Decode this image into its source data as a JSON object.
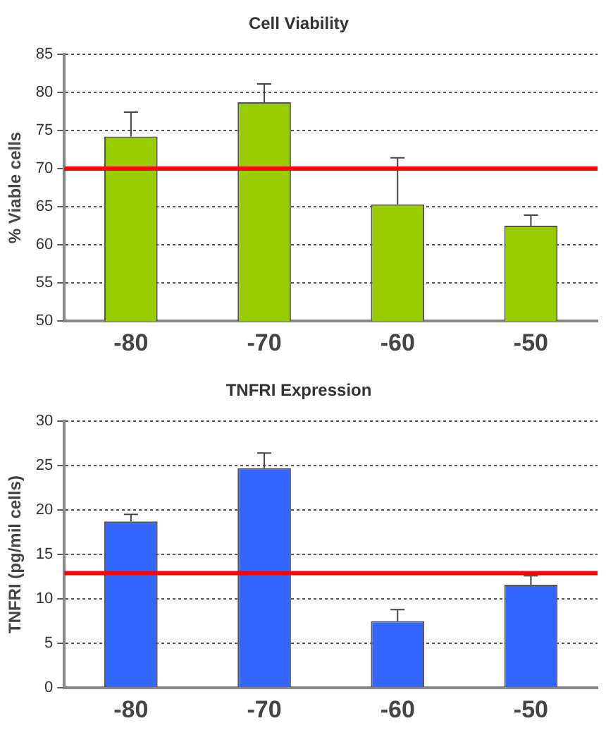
{
  "chart_data": [
    {
      "type": "bar",
      "title": "Cell Viability",
      "ylabel": "% Viable cells",
      "categories": [
        "-80",
        "-70",
        "-60",
        "-50"
      ],
      "series": [
        {
          "color": "#99cc00",
          "values": [
            74.2,
            78.7,
            65.3,
            62.5
          ],
          "errors": [
            [
              74.2,
              77.4
            ],
            [
              78.7,
              81.1
            ],
            [
              65.3,
              71.4
            ],
            [
              62.5,
              63.9
            ]
          ]
        }
      ],
      "ylim": [
        50,
        85
      ],
      "yticks": [
        50,
        55,
        60,
        65,
        70,
        75,
        80,
        85
      ],
      "grid": "y",
      "legend": false,
      "ref_lines": [
        {
          "axis": "y",
          "value": 70,
          "color": "#ff0000"
        }
      ]
    },
    {
      "type": "bar",
      "title": "TNFRI Expression",
      "ylabel": "TNFRI (pg/mil cells)",
      "categories": [
        "-80",
        "-70",
        "-60",
        "-50"
      ],
      "series": [
        {
          "color": "#3366ff",
          "values": [
            18.7,
            24.7,
            7.5,
            11.6
          ],
          "errors": [
            [
              18.7,
              19.5
            ],
            [
              24.7,
              26.4
            ],
            [
              7.5,
              8.8
            ],
            [
              11.6,
              12.6
            ]
          ]
        }
      ],
      "ylim": [
        0,
        30
      ],
      "yticks": [
        0,
        5,
        10,
        15,
        20,
        25,
        30
      ],
      "grid": "y",
      "legend": false,
      "ref_lines": [
        {
          "axis": "y",
          "value": 12.9,
          "color": "#ff0000"
        }
      ]
    }
  ]
}
